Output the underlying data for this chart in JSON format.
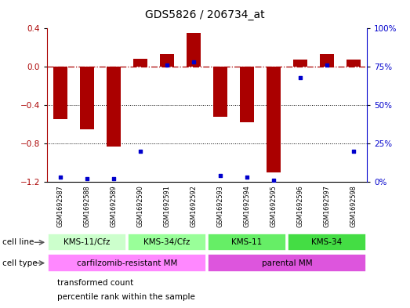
{
  "title": "GDS5826 / 206734_at",
  "samples": [
    "GSM1692587",
    "GSM1692588",
    "GSM1692589",
    "GSM1692590",
    "GSM1692591",
    "GSM1692592",
    "GSM1692593",
    "GSM1692594",
    "GSM1692595",
    "GSM1692596",
    "GSM1692597",
    "GSM1692598"
  ],
  "bar_values": [
    -0.55,
    -0.65,
    -0.83,
    0.08,
    0.13,
    0.35,
    -0.52,
    -0.58,
    -1.1,
    0.07,
    0.13,
    0.07
  ],
  "percentile_values": [
    3,
    2,
    2,
    20,
    76,
    78,
    4,
    3,
    1,
    68,
    76,
    20
  ],
  "bar_color": "#aa0000",
  "dot_color": "#0000cc",
  "ylim_left": [
    -1.2,
    0.4
  ],
  "ylim_right": [
    0,
    100
  ],
  "yticks_left": [
    -1.2,
    -0.8,
    -0.4,
    0.0,
    0.4
  ],
  "yticks_right": [
    0,
    25,
    50,
    75,
    100
  ],
  "ytick_labels_right": [
    "0%",
    "25%",
    "50%",
    "75%",
    "100%"
  ],
  "hline_y": 0.0,
  "dotted_lines": [
    -0.4,
    -0.8
  ],
  "cell_line_groups": [
    {
      "label": "KMS-11/Cfz",
      "start": 0,
      "end": 3,
      "color": "#ccffcc"
    },
    {
      "label": "KMS-34/Cfz",
      "start": 3,
      "end": 6,
      "color": "#99ff99"
    },
    {
      "label": "KMS-11",
      "start": 6,
      "end": 9,
      "color": "#66ee66"
    },
    {
      "label": "KMS-34",
      "start": 9,
      "end": 12,
      "color": "#44dd44"
    }
  ],
  "cell_type_groups": [
    {
      "label": "carfilzomib-resistant MM",
      "start": 0,
      "end": 6,
      "color": "#ff88ff"
    },
    {
      "label": "parental MM",
      "start": 6,
      "end": 12,
      "color": "#dd55dd"
    }
  ],
  "cell_line_row_label": "cell line",
  "cell_type_row_label": "cell type",
  "legend_items": [
    {
      "color": "#aa0000",
      "label": "transformed count"
    },
    {
      "color": "#0000cc",
      "label": "percentile rank within the sample"
    }
  ],
  "background_color": "#ffffff",
  "bar_width": 0.55,
  "sample_bg_color": "#cccccc",
  "sample_border_color": "#ffffff"
}
